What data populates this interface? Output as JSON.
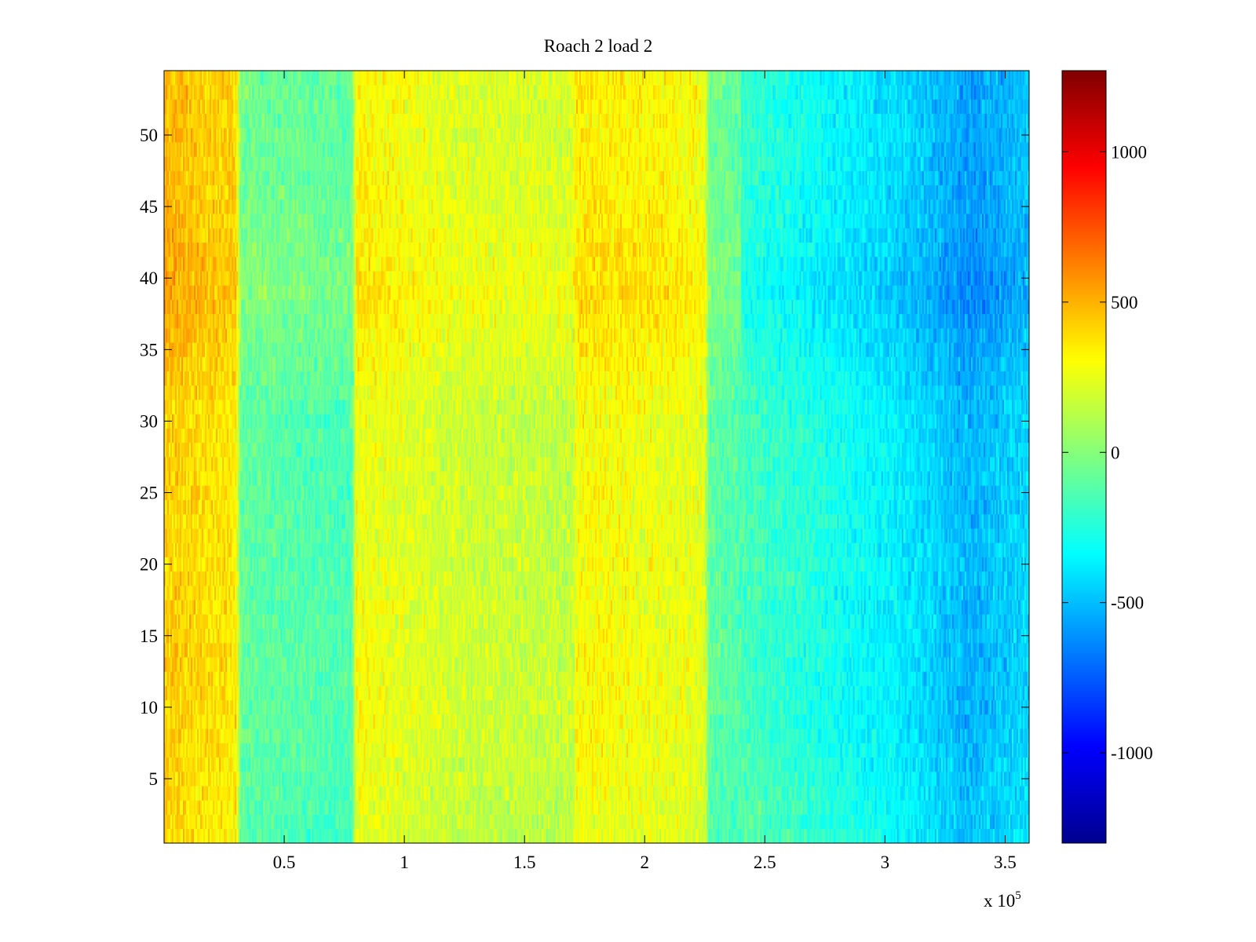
{
  "chart_data": {
    "type": "heatmap",
    "title": "Roach 2 load 2",
    "xlabel": "",
    "ylabel": "",
    "x_exponent_label": "x 10",
    "x_exponent_power": "5",
    "xlim": [
      0,
      3.6
    ],
    "ylim": [
      0.5,
      54.5
    ],
    "x_ticks": [
      0.5,
      1,
      1.5,
      2,
      2.5,
      3,
      3.5
    ],
    "x_tick_labels": [
      "0.5",
      "1",
      "1.5",
      "2",
      "2.5",
      "3",
      "3.5"
    ],
    "y_ticks": [
      5,
      10,
      15,
      20,
      25,
      30,
      35,
      40,
      45,
      50
    ],
    "y_tick_labels": [
      "5",
      "10",
      "15",
      "20",
      "25",
      "30",
      "35",
      "40",
      "45",
      "50"
    ],
    "n_rows": 54,
    "colormap": "jet",
    "clim": [
      -1300,
      1270
    ],
    "colorbar_ticks": [
      1000,
      500,
      0,
      -500,
      -1000
    ],
    "colorbar_tick_labels": [
      "1000",
      "500",
      "0",
      "-500",
      "-1000"
    ],
    "column_profile": {
      "x": [
        0,
        0.3,
        0.32,
        0.78,
        0.8,
        1.2,
        1.7,
        1.72,
        2.0,
        2.25,
        2.27,
        2.7,
        3.1,
        3.35,
        3.6
      ],
      "mean": [
        430,
        350,
        -100,
        -150,
        280,
        180,
        150,
        300,
        270,
        230,
        -100,
        -250,
        -380,
        -520,
        -420
      ]
    },
    "row_modifier": {
      "y": [
        1,
        10,
        20,
        30,
        33,
        37,
        39,
        41,
        45,
        50,
        54
      ],
      "delta": [
        -30,
        20,
        0,
        0,
        40,
        100,
        140,
        120,
        80,
        60,
        80
      ]
    },
    "noise_amplitude": 180
  }
}
